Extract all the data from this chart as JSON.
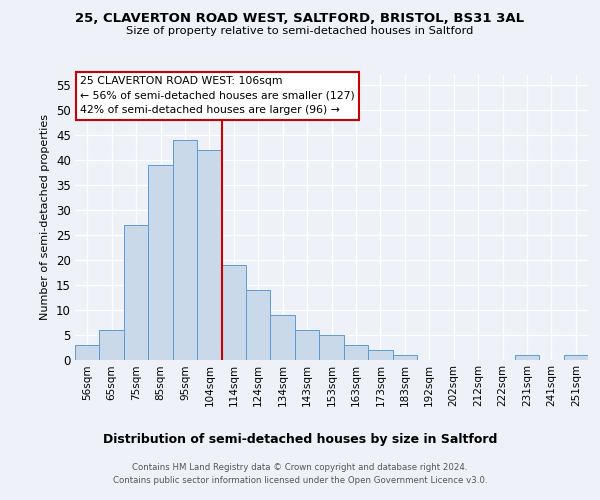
{
  "title_line1": "25, CLAVERTON ROAD WEST, SALTFORD, BRISTOL, BS31 3AL",
  "title_line2": "Size of property relative to semi-detached houses in Saltford",
  "xlabel": "Distribution of semi-detached houses by size in Saltford",
  "ylabel": "Number of semi-detached properties",
  "categories": [
    "56sqm",
    "65sqm",
    "75sqm",
    "85sqm",
    "95sqm",
    "104sqm",
    "114sqm",
    "124sqm",
    "134sqm",
    "143sqm",
    "153sqm",
    "163sqm",
    "173sqm",
    "183sqm",
    "192sqm",
    "202sqm",
    "212sqm",
    "222sqm",
    "231sqm",
    "241sqm",
    "251sqm"
  ],
  "values": [
    3,
    6,
    27,
    39,
    44,
    42,
    19,
    14,
    9,
    6,
    5,
    3,
    2,
    1,
    0,
    0,
    0,
    0,
    1,
    0,
    1
  ],
  "bar_color": "#c9d9ea",
  "bar_edge_color": "#5b9bd5",
  "vline_x": 5.5,
  "vline_color": "#cc0000",
  "annotation_text": "25 CLAVERTON ROAD WEST: 106sqm\n← 56% of semi-detached houses are smaller (127)\n42% of semi-detached houses are larger (96) →",
  "annotation_box_color": "#ffffff",
  "annotation_box_edge": "#cc0000",
  "footer_line1": "Contains HM Land Registry data © Crown copyright and database right 2024.",
  "footer_line2": "Contains public sector information licensed under the Open Government Licence v3.0.",
  "ylim": [
    0,
    57
  ],
  "yticks": [
    0,
    5,
    10,
    15,
    20,
    25,
    30,
    35,
    40,
    45,
    50,
    55
  ],
  "background_color": "#eef2f8",
  "grid_color": "#ffffff"
}
